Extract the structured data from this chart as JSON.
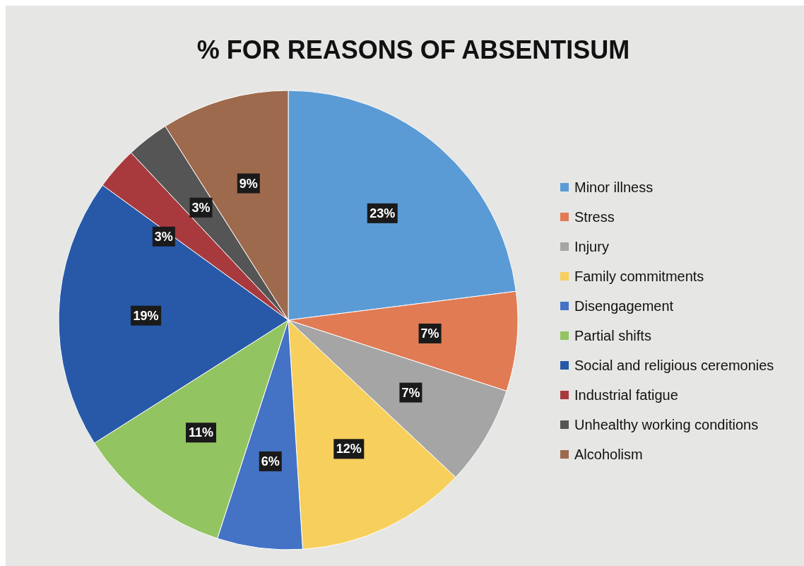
{
  "chart_data": {
    "type": "pie",
    "title": "%  FOR REASONS OF ABSENTISUM",
    "categories": [
      "Minor illness",
      "Stress",
      "Injury",
      "Family commitments",
      "Disengagement",
      "Partial shifts",
      "Social and religious ceremonies",
      "Industrial fatigue",
      "Unhealthy working conditions",
      "Alcoholism"
    ],
    "values": [
      23,
      7,
      7,
      12,
      6,
      11,
      19,
      3,
      3,
      9
    ],
    "value_labels": [
      "23%",
      "7%",
      "7%",
      "12%",
      "6%",
      "11%",
      "19%",
      "3%",
      "3%",
      "9%"
    ],
    "colors": [
      "#5b9bd5",
      "#e07b54",
      "#a5a5a5",
      "#f7cf5c",
      "#4472c4",
      "#93c462",
      "#2759a8",
      "#a83a3e",
      "#555555",
      "#9e6a4e"
    ],
    "legend": "right"
  }
}
